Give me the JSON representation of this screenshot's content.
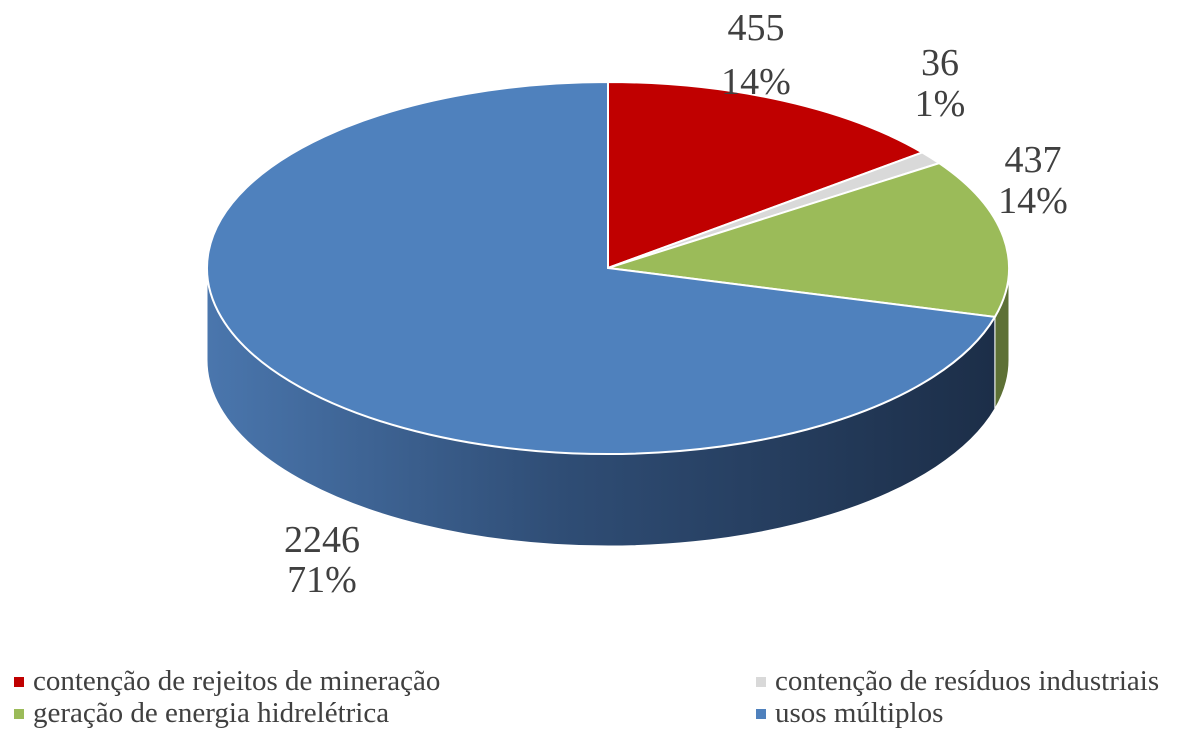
{
  "chart_data": {
    "type": "pie3d",
    "categories": [
      "contenção de rejeitos de mineração",
      "contenção de resíduos industriais",
      "geração de energia hidrelétrica",
      "usos múltiplos"
    ],
    "values": [
      455,
      36,
      437,
      2246
    ],
    "percent_labels": [
      "14%",
      "1%",
      "14%",
      "71%"
    ],
    "colors": [
      "#c00000",
      "#d9d9d9",
      "#9bbb59",
      "#4f81bd"
    ],
    "legend": "bottom"
  }
}
